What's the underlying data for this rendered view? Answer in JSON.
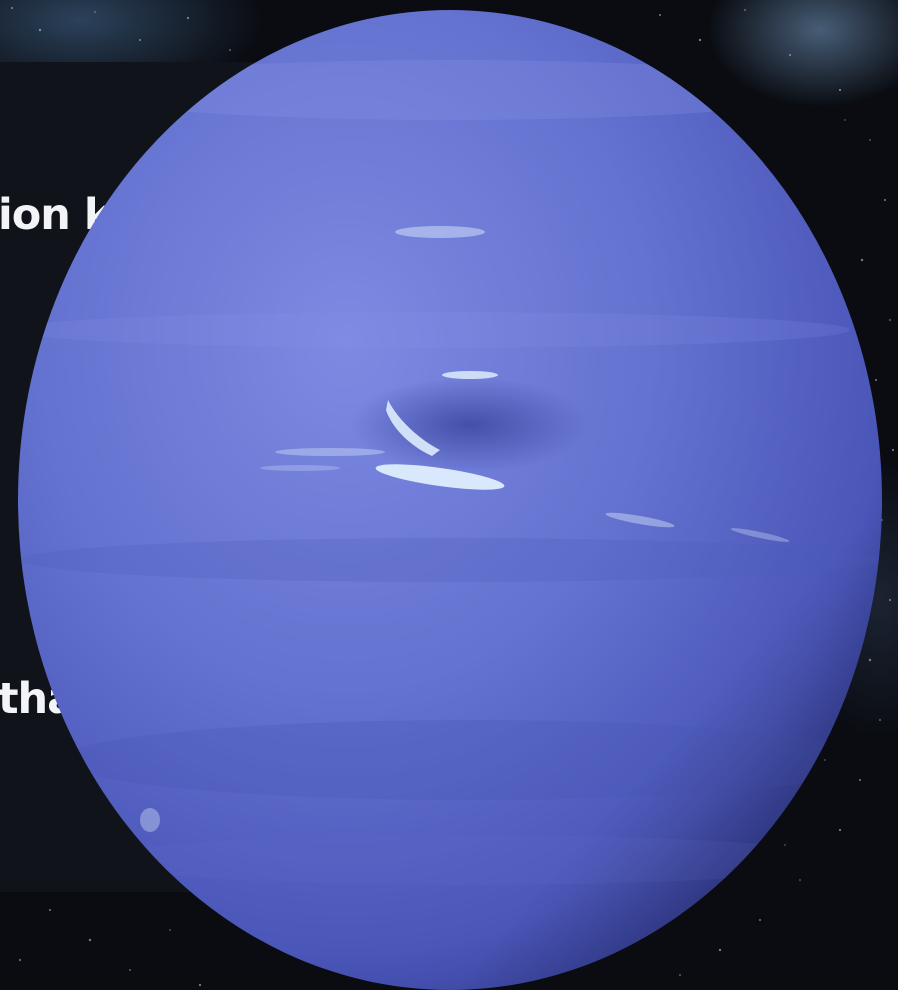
{
  "image": {
    "subject": "planet-neptune",
    "colors": {
      "space": "#0a0c12",
      "panel": "#101319",
      "planet_light": "#7a86e0",
      "planet_mid": "#5a66c8",
      "planet_dark": "#3a44a0",
      "cloud": "#dff2ff",
      "text": "#f2f4f8"
    }
  },
  "visible_text": {
    "line_1": "ion km)",
    "line_2": "thane"
  }
}
